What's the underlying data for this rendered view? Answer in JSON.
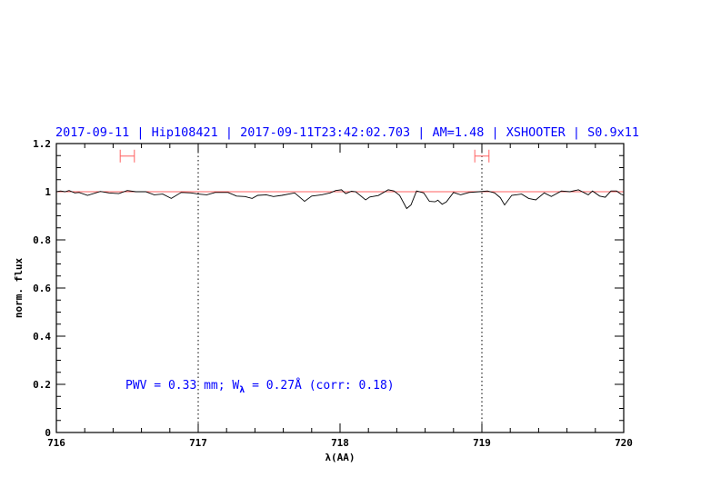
{
  "chart_data": {
    "type": "line",
    "title": "2017-09-11 | Hip108421 | 2017-09-11T23:42:02.703 | AM=1.48 | XSHOOTER | S0.9x11",
    "xlabel": "λ(AA)",
    "ylabel": "norm. flux",
    "xlim": [
      716,
      720
    ],
    "ylim": [
      0,
      1.2
    ],
    "xticks": [
      "716",
      "717",
      "718",
      "719",
      "720"
    ],
    "yticks": [
      "0",
      "0.2",
      "0.4",
      "0.6",
      "0.8",
      "1",
      "1.2"
    ],
    "x_minor_step": 0.2,
    "y_minor_step": 0.05,
    "grid": false,
    "vertical_dotted_lines": [
      717,
      719
    ],
    "reference_line": {
      "y": 1.0,
      "color": "#ff6060"
    },
    "error_bars": [
      {
        "x_from": 716.45,
        "x_to": 716.55,
        "y": 1.148
      },
      {
        "x_from": 718.95,
        "x_to": 719.05,
        "y": 1.148
      }
    ],
    "annotation": {
      "prefix": "PWV = 0.33 mm; W",
      "subscript": "λ",
      "suffix": " = 0.27Å (corr: 0.18)"
    },
    "colors": {
      "title": "#0000ff",
      "annotation": "#0000ff",
      "spectrum": "#000000",
      "error_bar": "#ff6060"
    },
    "series": [
      {
        "x": [
          716.0,
          716.03,
          716.06,
          716.09,
          716.13,
          716.16,
          716.22,
          716.31,
          716.37,
          716.44,
          716.5,
          716.56,
          716.63,
          716.69,
          716.75,
          716.81,
          716.88,
          716.95,
          717.0,
          717.06,
          717.12,
          717.21,
          717.27,
          717.33,
          717.38,
          717.42,
          717.48,
          717.53,
          717.59,
          717.68,
          717.75,
          717.8,
          717.87,
          717.93,
          717.97,
          718.01,
          718.04,
          718.08,
          718.11,
          718.18,
          718.21,
          718.27,
          718.34,
          718.38,
          718.42,
          718.47,
          718.5,
          718.54,
          718.59,
          718.63,
          718.67,
          718.69,
          718.72,
          718.75,
          718.8,
          718.85,
          718.91,
          718.98,
          719.04,
          719.09,
          719.13,
          719.16,
          719.21,
          719.28,
          719.33,
          719.38,
          719.44,
          719.49,
          719.56,
          719.62,
          719.68,
          719.75,
          719.78,
          719.83,
          719.87,
          719.91,
          719.95,
          719.98,
          720.0
        ],
        "y": [
          1.0,
          1.003,
          1.0,
          1.005,
          0.995,
          0.997,
          0.985,
          1.001,
          0.995,
          0.992,
          1.005,
          1.0,
          1.0,
          0.987,
          0.99,
          0.972,
          0.997,
          0.995,
          0.99,
          0.987,
          0.997,
          0.997,
          0.982,
          0.98,
          0.972,
          0.985,
          0.987,
          0.98,
          0.985,
          0.995,
          0.96,
          0.982,
          0.987,
          0.995,
          1.005,
          1.008,
          0.992,
          1.002,
          1.0,
          0.966,
          0.978,
          0.984,
          1.008,
          1.003,
          0.985,
          0.93,
          0.945,
          1.003,
          0.995,
          0.96,
          0.958,
          0.965,
          0.948,
          0.958,
          0.997,
          0.987,
          0.997,
          1.0,
          1.003,
          0.995,
          0.975,
          0.945,
          0.985,
          0.99,
          0.972,
          0.966,
          0.995,
          0.98,
          1.003,
          1.0,
          1.008,
          0.987,
          1.003,
          0.982,
          0.977,
          1.003,
          1.003,
          0.99,
          0.985
        ]
      }
    ]
  }
}
